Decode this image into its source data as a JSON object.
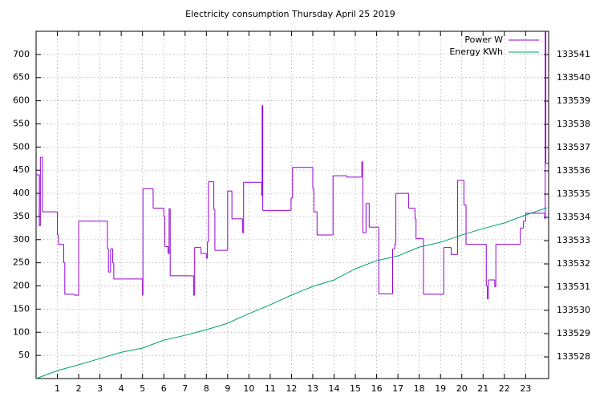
{
  "chart_data": {
    "type": "line",
    "title": "Electricity consumption Thursday April 25 2019",
    "xlim": [
      0,
      24.08
    ],
    "xticks": [
      1,
      2,
      3,
      4,
      5,
      6,
      7,
      8,
      9,
      10,
      11,
      12,
      13,
      14,
      15,
      16,
      17,
      18,
      19,
      20,
      21,
      22,
      23
    ],
    "ylim": [
      0,
      750
    ],
    "yticks": [
      50,
      100,
      150,
      200,
      250,
      300,
      350,
      400,
      450,
      500,
      550,
      600,
      650,
      700
    ],
    "y2lim": [
      133527.07,
      133542
    ],
    "y2ticks": [
      133528,
      133529,
      133530,
      133531,
      133532,
      133533,
      133534,
      133535,
      133536,
      133537,
      133538,
      133539,
      133540,
      133541
    ],
    "grid": true,
    "legend": "top-right",
    "series": [
      {
        "name": "Power W",
        "color": "#9400d3",
        "steps": true,
        "x": [
          0,
          0.15,
          0.2,
          0.3,
          1.0,
          1.05,
          1.3,
          1.35,
          1.8,
          2.0,
          3.35,
          3.4,
          3.5,
          3.6,
          3.65,
          5.0,
          5.02,
          5.5,
          6.0,
          6.05,
          6.2,
          6.25,
          6.3,
          7.4,
          7.45,
          7.75,
          8.0,
          8.05,
          8.1,
          8.35,
          8.4,
          9.0,
          9.2,
          9.7,
          9.75,
          10.6,
          10.62,
          10.65,
          11.98,
          12.05,
          13.0,
          13.05,
          13.2,
          13.95,
          14.6,
          15.3,
          15.35,
          15.5,
          15.65,
          16.1,
          16.75,
          16.85,
          16.9,
          17.5,
          17.8,
          17.85,
          18.2,
          19.15,
          19.5,
          19.8,
          20.1,
          20.2,
          21.15,
          21.2,
          21.25,
          21.55,
          21.6,
          22.75,
          22.9,
          23.0,
          23.9,
          23.92,
          23.95
        ],
        "values": [
          440,
          330,
          478,
          360,
          310,
          290,
          250,
          182,
          180,
          340,
          280,
          230,
          280,
          250,
          215,
          180,
          410,
          368,
          350,
          285,
          270,
          367,
          222,
          180,
          283,
          270,
          260,
          295,
          425,
          365,
          277,
          405,
          345,
          315,
          424,
          395,
          590,
          363,
          390,
          456,
          410,
          360,
          310,
          438,
          435,
          468,
          315,
          378,
          327,
          183,
          280,
          290,
          400,
          368,
          345,
          302,
          182,
          283,
          268,
          428,
          375,
          290,
          200,
          172,
          213,
          198,
          290,
          325,
          340,
          357,
          345,
          750,
          465
        ]
      },
      {
        "name": "Energy KWh",
        "color": "#009e73",
        "axis": "y2",
        "x": [
          0,
          1,
          2,
          3,
          4,
          5,
          6,
          7,
          8,
          9,
          10,
          11,
          12,
          13,
          14,
          15,
          16,
          17,
          18,
          19,
          20,
          21,
          22,
          23,
          24
        ],
        "values": [
          133527.07,
          133527.41,
          133527.66,
          133527.93,
          133528.2,
          133528.38,
          133528.72,
          133528.93,
          133529.17,
          133529.45,
          133529.86,
          133530.24,
          133530.66,
          133531.03,
          133531.31,
          133531.79,
          133532.14,
          133532.34,
          133532.72,
          133532.93,
          133533.24,
          133533.52,
          133533.76,
          133534.1,
          133534.41
        ]
      }
    ]
  }
}
